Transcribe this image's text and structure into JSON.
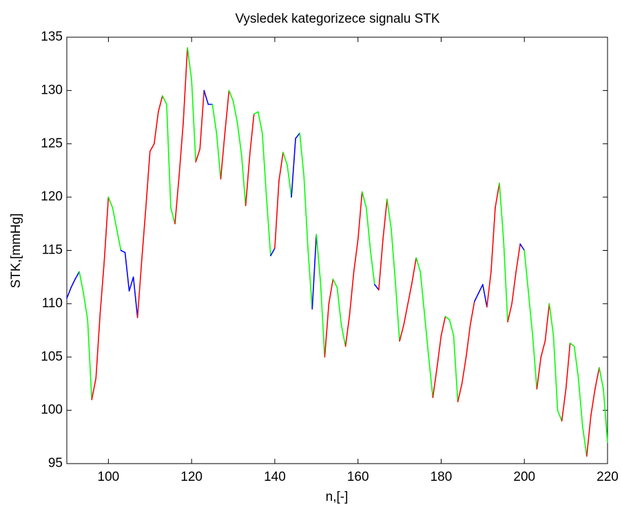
{
  "chart_data": {
    "type": "line",
    "title": "Vysledek kategorizece signalu STK",
    "xlabel": "n,[-]",
    "ylabel": "STK,[mmHg]",
    "xlim": [
      90,
      220
    ],
    "xticks": [
      100,
      120,
      140,
      160,
      180,
      200,
      220
    ],
    "ylim": [
      95,
      135
    ],
    "yticks": [
      95,
      100,
      105,
      110,
      115,
      120,
      125,
      130,
      135
    ],
    "x": [
      90,
      91,
      92,
      93,
      94,
      95,
      96,
      97,
      98,
      99,
      100,
      101,
      102,
      103,
      104,
      105,
      106,
      107,
      108,
      109,
      110,
      111,
      112,
      113,
      114,
      115,
      116,
      117,
      118,
      119,
      120,
      121,
      122,
      123,
      124,
      125,
      126,
      127,
      128,
      129,
      130,
      131,
      132,
      133,
      134,
      135,
      136,
      137,
      138,
      139,
      140,
      141,
      142,
      143,
      144,
      145,
      146,
      147,
      148,
      149,
      150,
      151,
      152,
      153,
      154,
      155,
      156,
      157,
      158,
      159,
      160,
      161,
      162,
      163,
      164,
      165,
      166,
      167,
      168,
      169,
      170,
      171,
      172,
      173,
      174,
      175,
      176,
      177,
      178,
      179,
      180,
      181,
      182,
      183,
      184,
      185,
      186,
      187,
      188,
      189,
      190,
      191,
      192,
      193,
      194,
      195,
      196,
      197,
      198,
      199,
      200,
      201,
      202,
      203,
      204,
      205,
      206,
      207,
      208,
      209,
      210,
      211,
      212,
      213,
      214,
      215,
      216,
      217,
      218,
      219,
      220
    ],
    "values": [
      110.5,
      111.5,
      112.3,
      113,
      111,
      108.5,
      101,
      103,
      109,
      114,
      120,
      119,
      117,
      115,
      114.8,
      111.2,
      112.5,
      108.7,
      114,
      119,
      124.3,
      125,
      128,
      129.5,
      128.7,
      119,
      117.5,
      122,
      127,
      134,
      131,
      123.3,
      124.5,
      130,
      128.7,
      128.7,
      126,
      121.7,
      126,
      130,
      129,
      127,
      124,
      119.2,
      124,
      127.8,
      128,
      126,
      120,
      114.5,
      115.2,
      121.5,
      124.2,
      123,
      120,
      125.5,
      126,
      122,
      115,
      109.5,
      116.5,
      112,
      105,
      110,
      112.3,
      111.5,
      108,
      106,
      109,
      113,
      116,
      120.5,
      119,
      115,
      111.8,
      111.3,
      116,
      119.8,
      117,
      112,
      106.5,
      108,
      110,
      112,
      114.3,
      113,
      109,
      105,
      101.2,
      104,
      107,
      108.8,
      108.5,
      107,
      100.8,
      102.5,
      105,
      108,
      110.2,
      111,
      111.8,
      109.7,
      113,
      119,
      121.3,
      116,
      108.3,
      110,
      113,
      115.6,
      115,
      111,
      107,
      102,
      105,
      106.5,
      110,
      107,
      100,
      99,
      102,
      106.3,
      106,
      103,
      98.5,
      95.7,
      99.5,
      102,
      104,
      102,
      97
    ],
    "colors": [
      "blue",
      "blue",
      "blue",
      "blue",
      "lime",
      "lime",
      "lime",
      "red",
      "red",
      "red",
      "red",
      "lime",
      "lime",
      "lime",
      "blue",
      "blue",
      "blue",
      "blue",
      "red",
      "red",
      "red",
      "red",
      "red",
      "red",
      "lime",
      "lime",
      "lime",
      "red",
      "red",
      "red",
      "lime",
      "lime",
      "red",
      "red",
      "blue",
      "blue",
      "lime",
      "lime",
      "red",
      "red",
      "lime",
      "lime",
      "lime",
      "lime",
      "red",
      "red",
      "lime",
      "lime",
      "lime",
      "lime",
      "blue",
      "red",
      "red",
      "lime",
      "lime",
      "blue",
      "blue",
      "lime",
      "lime",
      "lime",
      "blue",
      "lime",
      "lime",
      "red",
      "red",
      "lime",
      "lime",
      "lime",
      "red",
      "red",
      "red",
      "red",
      "lime",
      "lime",
      "lime",
      "blue",
      "red",
      "red",
      "lime",
      "lime",
      "lime",
      "red",
      "red",
      "red",
      "red",
      "lime",
      "lime",
      "lime",
      "lime",
      "red",
      "red",
      "red",
      "lime",
      "lime",
      "lime",
      "red",
      "red",
      "red",
      "red",
      "blue",
      "blue",
      "blue",
      "red",
      "red",
      "red",
      "lime",
      "lime",
      "red",
      "red",
      "red",
      "blue",
      "lime",
      "lime",
      "lime",
      "red",
      "red",
      "red",
      "lime",
      "lime",
      "lime",
      "red",
      "red",
      "lime",
      "lime",
      "lime",
      "lime",
      "red",
      "red",
      "red",
      "lime",
      "lime"
    ]
  }
}
